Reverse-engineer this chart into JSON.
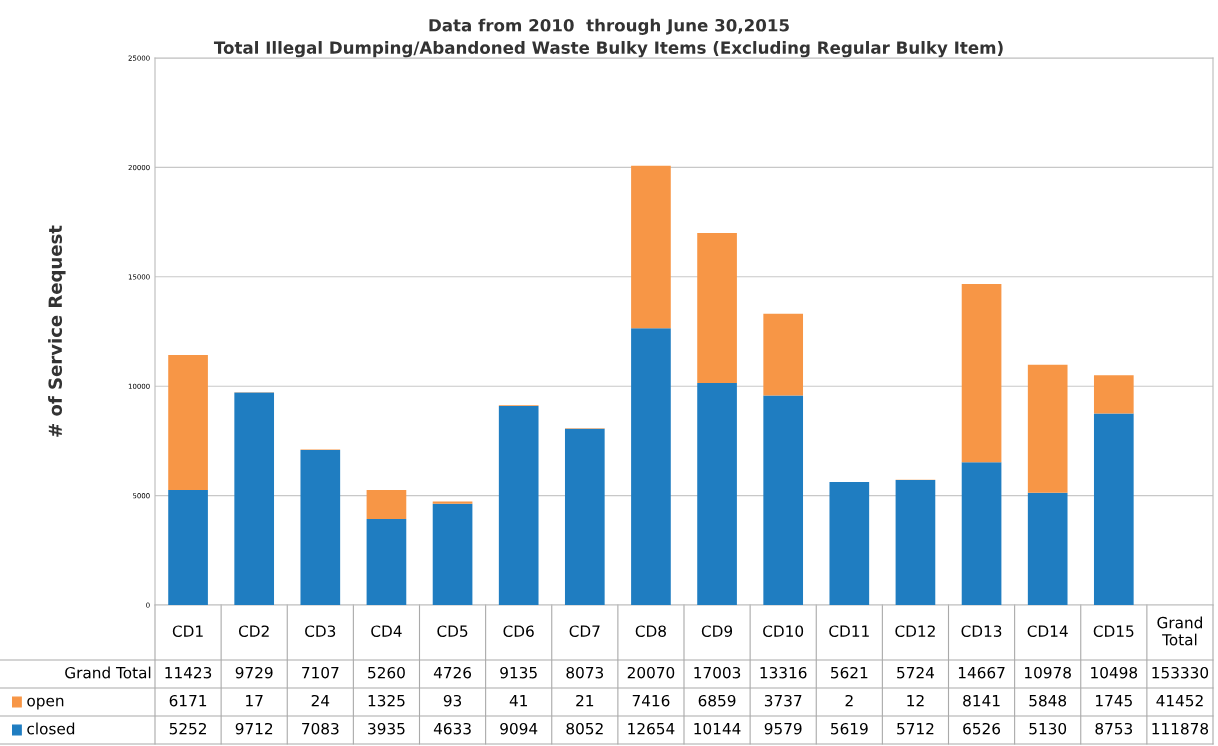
{
  "chart_data": {
    "type": "bar",
    "stacked": true,
    "title": "Data from 2010  through June 30,2015",
    "subtitle": "Total Illegal Dumping/Abandoned Waste Bulky Items (Excluding Regular Bulky Item)",
    "ylabel": "# of Service Request",
    "categories": [
      "CD1",
      "CD2",
      "CD3",
      "CD4",
      "CD5",
      "CD6",
      "CD7",
      "CD8",
      "CD9",
      "CD10",
      "CD11",
      "CD12",
      "CD13",
      "CD14",
      "CD15",
      "Grand Total"
    ],
    "series": [
      {
        "name": "closed",
        "color": "#1f7dc1",
        "values": [
          5252,
          9712,
          7083,
          3935,
          4633,
          9094,
          8052,
          12654,
          10144,
          9579,
          5619,
          5712,
          6526,
          5130,
          8753,
          null
        ],
        "value_labels": [
          "5252",
          "9712",
          "7083",
          "3935",
          "4633",
          "9094",
          "8052",
          "12654",
          "10144",
          "9579",
          "5619",
          "5712",
          "6526",
          "5130",
          "8753",
          "111878"
        ]
      },
      {
        "name": "open",
        "color": "#f79646",
        "values": [
          6171,
          17,
          24,
          1325,
          93,
          41,
          21,
          7416,
          6859,
          3737,
          2,
          12,
          8141,
          5848,
          1745,
          null
        ],
        "value_labels": [
          "6171",
          "17",
          "24",
          "1325",
          "93",
          "41",
          "21",
          "7416",
          "6859",
          "3737",
          "2",
          "12",
          "8141",
          "5848",
          "1745",
          "41452"
        ]
      }
    ],
    "annotations": [
      "Grand Total",
      "11423",
      "9729",
      "7107",
      "5260",
      "4726",
      "9135",
      "8073",
      "20070",
      "17003",
      "13316",
      "5621",
      "5724",
      "14667",
      "10978",
      "10498",
      "153330"
    ],
    "ylim": [
      0,
      25000
    ],
    "yticks": [
      0,
      5000,
      10000,
      15000,
      20000,
      25000
    ],
    "grid": "y",
    "legend": "bottom left"
  }
}
